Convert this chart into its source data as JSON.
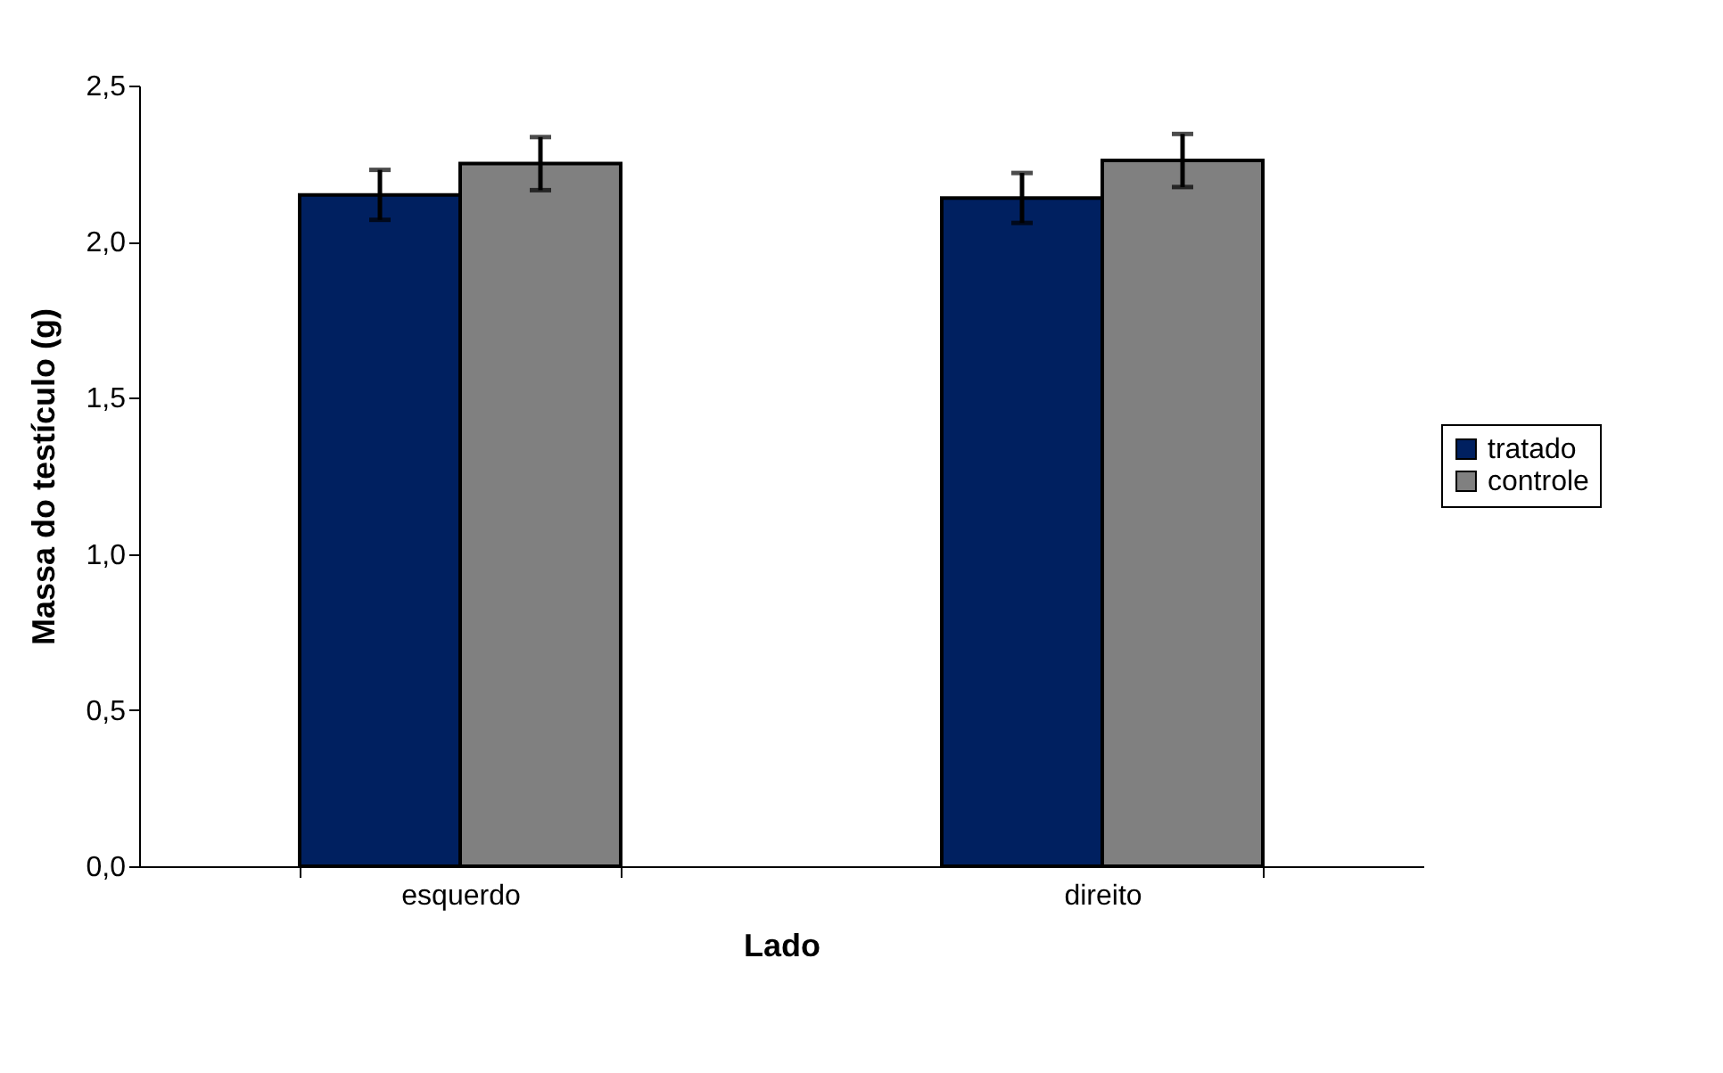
{
  "chart_data": {
    "type": "bar",
    "xlabel": "Lado",
    "ylabel": "Massa do testículo (g)",
    "categories": [
      "esquerdo",
      "direito"
    ],
    "series": [
      {
        "name": "tratado",
        "color": "#002060",
        "values": [
          2.15,
          2.14
        ],
        "errors": [
          0.08,
          0.08
        ]
      },
      {
        "name": "controle",
        "color": "#808080",
        "values": [
          2.25,
          2.26
        ],
        "errors": [
          0.085,
          0.085
        ]
      }
    ],
    "ylim": [
      0,
      2.5
    ],
    "yticks": [
      {
        "value": 0,
        "label": "0,0"
      },
      {
        "value": 0.5,
        "label": "0,5"
      },
      {
        "value": 1,
        "label": "1,0"
      },
      {
        "value": 1.5,
        "label": "1,5"
      },
      {
        "value": 2,
        "label": "2,0"
      },
      {
        "value": 2.5,
        "label": "2,5"
      }
    ],
    "grid": false,
    "legend": "right"
  }
}
